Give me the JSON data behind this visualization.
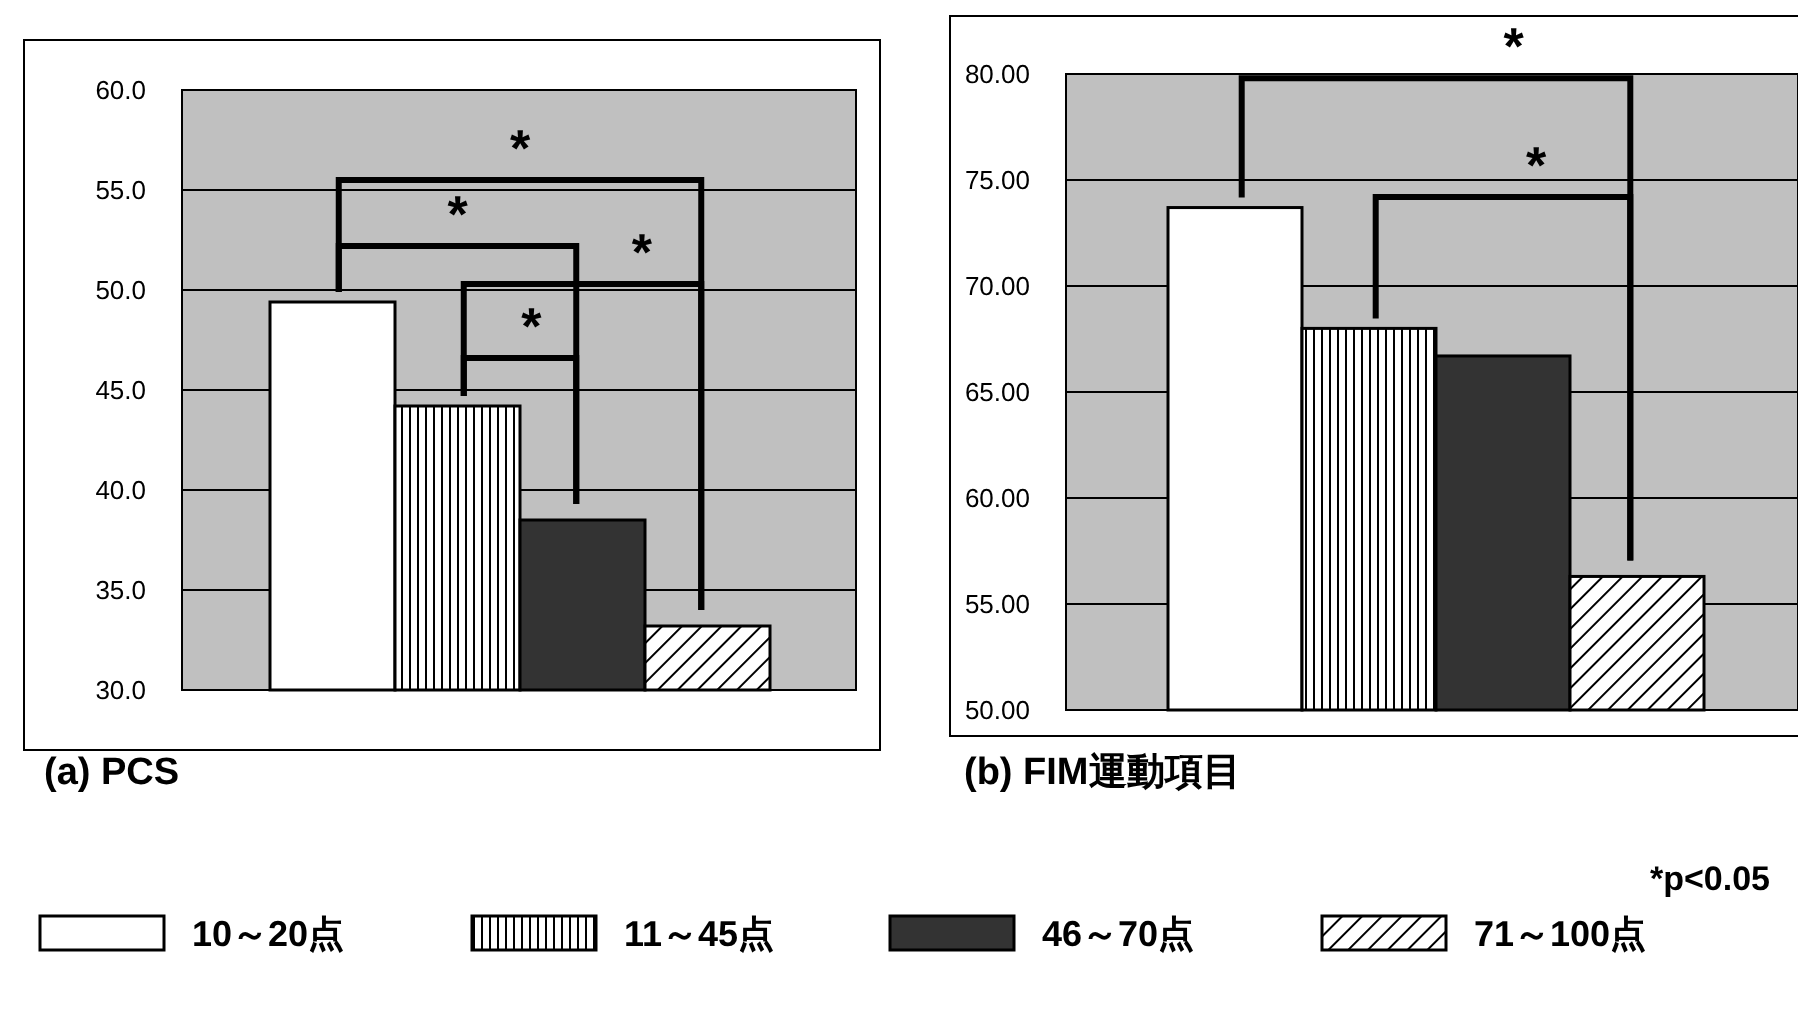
{
  "chart_data": [
    {
      "type": "bar",
      "title": "(a) PCS",
      "categories": [
        null
      ],
      "ylim": [
        30,
        60
      ],
      "yticks": [
        {
          "value": 30,
          "label": "30.0"
        },
        {
          "value": 35,
          "label": "35.0"
        },
        {
          "value": 40,
          "label": "40.0"
        },
        {
          "value": 45,
          "label": "45.0"
        },
        {
          "value": 50,
          "label": "50.0"
        },
        {
          "value": 55,
          "label": "55.0"
        },
        {
          "value": 60,
          "label": "60.0"
        }
      ],
      "grid": "y",
      "legend": "bottom",
      "series": [
        {
          "name": "10～20点",
          "color": "#ffffff",
          "values": [
            49.4
          ]
        },
        {
          "name": "11～45点",
          "color": "#000000",
          "values": [
            44.2
          ]
        },
        {
          "name": "46～70点",
          "color": "#333333",
          "values": [
            38.5
          ]
        },
        {
          "name": "71～100点",
          "color": "#000000",
          "values": [
            33.2
          ]
        }
      ],
      "annotations": [
        "*",
        "*",
        "*",
        "*"
      ]
    },
    {
      "type": "bar",
      "title": "(b) FIM運動項目",
      "categories": [
        null
      ],
      "ylim": [
        50,
        80
      ],
      "yticks": [
        {
          "value": 50,
          "label": "50.00"
        },
        {
          "value": 55,
          "label": "55.00"
        },
        {
          "value": 60,
          "label": "60.00"
        },
        {
          "value": 65,
          "label": "65.00"
        },
        {
          "value": 70,
          "label": "70.00"
        },
        {
          "value": 75,
          "label": "75.00"
        },
        {
          "value": 80,
          "label": "80.00"
        }
      ],
      "grid": "y",
      "legend": false,
      "series": [
        {
          "color": "#ffffff",
          "values": [
            73.7
          ]
        },
        {
          "color": "#000000",
          "values": [
            68.0
          ]
        },
        {
          "color": "#333333",
          "values": [
            66.7
          ]
        },
        {
          "color": "#000000",
          "values": [
            56.3
          ]
        }
      ],
      "annotations": [
        "*",
        "*",
        "*p<0.05"
      ]
    }
  ]
}
